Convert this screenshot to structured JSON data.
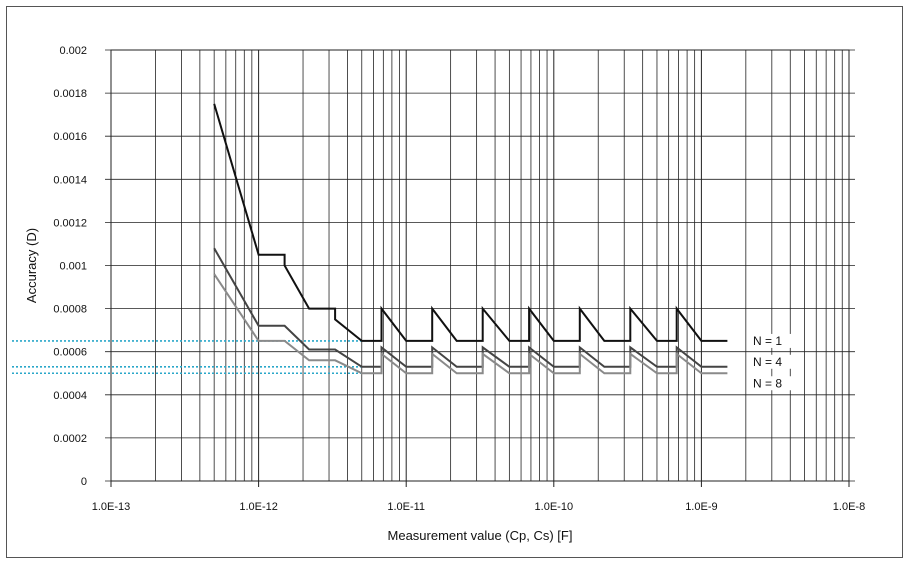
{
  "chart_data": {
    "type": "line",
    "x_scale": "log",
    "xlim": [
      1e-13,
      1e-08
    ],
    "ylim": [
      0,
      0.002
    ],
    "grid": true,
    "xlabel": "Measurement value (Cp, Cs) [F]",
    "ylabel": "Accuracy (D)",
    "x_tick_labels": [
      "1.0E-13",
      "1.0E-12",
      "1.0E-11",
      "1.0E-10",
      "1.0E-9",
      "1.0E-8"
    ],
    "x_tick_values": [
      1e-13,
      1e-12,
      1e-11,
      1e-10,
      1e-09,
      1e-08
    ],
    "y_tick_labels": [
      "0",
      "0.0002",
      "0.0004",
      "0.0006",
      "0.0008",
      "0.001",
      "0.0012",
      "0.0014",
      "0.0016",
      "0.0018",
      "0.002"
    ],
    "y_tick_values": [
      0,
      0.0002,
      0.0004,
      0.0006,
      0.0008,
      0.001,
      0.0012,
      0.0014,
      0.0016,
      0.0018,
      0.002
    ],
    "series": [
      {
        "name": "N = 1",
        "color": "#111111",
        "points": [
          [
            5e-13,
            0.00175
          ],
          [
            1e-12,
            0.00105
          ],
          [
            1.5e-12,
            0.00105
          ],
          [
            1.5e-12,
            0.001
          ],
          [
            2.2e-12,
            0.0008
          ],
          [
            3.3e-12,
            0.0008
          ],
          [
            3.3e-12,
            0.00075
          ],
          [
            5e-12,
            0.00065
          ],
          [
            6.8e-12,
            0.00065
          ],
          [
            6.8e-12,
            0.0008
          ],
          [
            1e-11,
            0.00065
          ],
          [
            1.5e-11,
            0.00065
          ],
          [
            1.5e-11,
            0.0008
          ],
          [
            2.2e-11,
            0.00065
          ],
          [
            3.3e-11,
            0.00065
          ],
          [
            3.3e-11,
            0.0008
          ],
          [
            5e-11,
            0.00065
          ],
          [
            6.8e-11,
            0.00065
          ],
          [
            6.8e-11,
            0.0008
          ],
          [
            1e-10,
            0.00065
          ],
          [
            1.5e-10,
            0.00065
          ],
          [
            1.5e-10,
            0.0008
          ],
          [
            2.2e-10,
            0.00065
          ],
          [
            3.3e-10,
            0.00065
          ],
          [
            3.3e-10,
            0.0008
          ],
          [
            5e-10,
            0.00065
          ],
          [
            6.8e-10,
            0.00065
          ],
          [
            6.8e-10,
            0.0008
          ],
          [
            1e-09,
            0.00065
          ],
          [
            1.5e-09,
            0.00065
          ]
        ]
      },
      {
        "name": "N = 4",
        "color": "#444444",
        "points": [
          [
            5e-13,
            0.00108
          ],
          [
            1e-12,
            0.00072
          ],
          [
            1.5e-12,
            0.00072
          ],
          [
            2.2e-12,
            0.00061
          ],
          [
            3.3e-12,
            0.00061
          ],
          [
            5e-12,
            0.00053
          ],
          [
            6.8e-12,
            0.00053
          ],
          [
            6.8e-12,
            0.00062
          ],
          [
            1e-11,
            0.00053
          ],
          [
            1.5e-11,
            0.00053
          ],
          [
            1.5e-11,
            0.00062
          ],
          [
            2.2e-11,
            0.00053
          ],
          [
            3.3e-11,
            0.00053
          ],
          [
            3.3e-11,
            0.00062
          ],
          [
            5e-11,
            0.00053
          ],
          [
            6.8e-11,
            0.00053
          ],
          [
            6.8e-11,
            0.00062
          ],
          [
            1e-10,
            0.00053
          ],
          [
            1.5e-10,
            0.00053
          ],
          [
            1.5e-10,
            0.00062
          ],
          [
            2.2e-10,
            0.00053
          ],
          [
            3.3e-10,
            0.00053
          ],
          [
            3.3e-10,
            0.00062
          ],
          [
            5e-10,
            0.00053
          ],
          [
            6.8e-10,
            0.00053
          ],
          [
            6.8e-10,
            0.00062
          ],
          [
            1e-09,
            0.00053
          ],
          [
            1.5e-09,
            0.00053
          ]
        ]
      },
      {
        "name": "N = 8",
        "color": "#8a8a8a",
        "points": [
          [
            5e-13,
            0.00096
          ],
          [
            1e-12,
            0.00065
          ],
          [
            1.5e-12,
            0.00065
          ],
          [
            2.2e-12,
            0.00056
          ],
          [
            3.3e-12,
            0.00056
          ],
          [
            5e-12,
            0.0005
          ],
          [
            6.8e-12,
            0.0005
          ],
          [
            6.8e-12,
            0.00059
          ],
          [
            1e-11,
            0.0005
          ],
          [
            1.5e-11,
            0.0005
          ],
          [
            1.5e-11,
            0.00059
          ],
          [
            2.2e-11,
            0.0005
          ],
          [
            3.3e-11,
            0.0005
          ],
          [
            3.3e-11,
            0.00059
          ],
          [
            5e-11,
            0.0005
          ],
          [
            6.8e-11,
            0.0005
          ],
          [
            6.8e-11,
            0.00059
          ],
          [
            1e-10,
            0.0005
          ],
          [
            1.5e-10,
            0.0005
          ],
          [
            1.5e-10,
            0.00059
          ],
          [
            2.2e-10,
            0.0005
          ],
          [
            3.3e-10,
            0.0005
          ],
          [
            3.3e-10,
            0.00059
          ],
          [
            5e-10,
            0.0005
          ],
          [
            6.8e-10,
            0.0005
          ],
          [
            6.8e-10,
            0.00059
          ],
          [
            1e-09,
            0.0005
          ],
          [
            1.5e-09,
            0.0005
          ]
        ]
      }
    ],
    "reference_lines": {
      "color": "#2aa7c9",
      "style": "dotted",
      "x_end": 5e-12,
      "y_values": [
        0.00065,
        0.00053,
        0.0005
      ]
    }
  }
}
